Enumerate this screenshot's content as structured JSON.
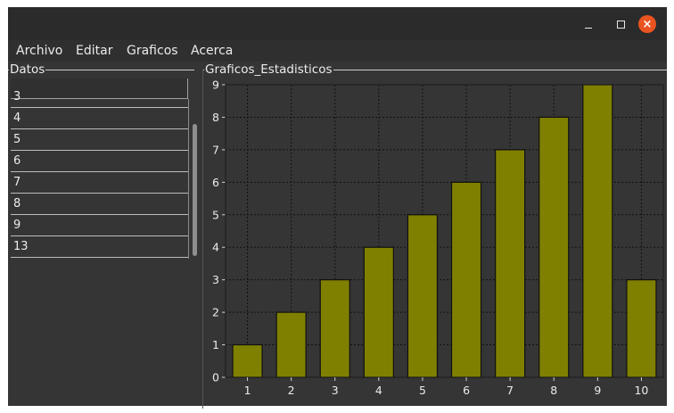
{
  "window": {
    "titlebar_buttons": {
      "minimize": "minimize-icon",
      "maximize": "maximize-icon",
      "close": "close-icon",
      "close_color": "#e95420"
    }
  },
  "menu": {
    "items": [
      "Archivo",
      "Editar",
      "Graficos",
      "Acerca"
    ]
  },
  "datos": {
    "title": "Datos",
    "rows": [
      "3",
      "4",
      "5",
      "6",
      "7",
      "8",
      "9",
      "13"
    ]
  },
  "graficos": {
    "title": "Graficos_Estadisticos"
  },
  "chart_data": {
    "type": "bar",
    "title": "",
    "xlabel": "",
    "ylabel": "",
    "categories": [
      "1",
      "2",
      "3",
      "4",
      "5",
      "6",
      "7",
      "8",
      "9",
      "10"
    ],
    "values": [
      1,
      2,
      3,
      4,
      5,
      6,
      7,
      8,
      9,
      3
    ],
    "ylim": [
      0,
      9
    ],
    "yticks": [
      "0",
      "1",
      "2",
      "3",
      "4",
      "5",
      "6",
      "7",
      "8",
      "9"
    ],
    "grid": true,
    "bar_color": "#808000",
    "background": "#353535"
  }
}
